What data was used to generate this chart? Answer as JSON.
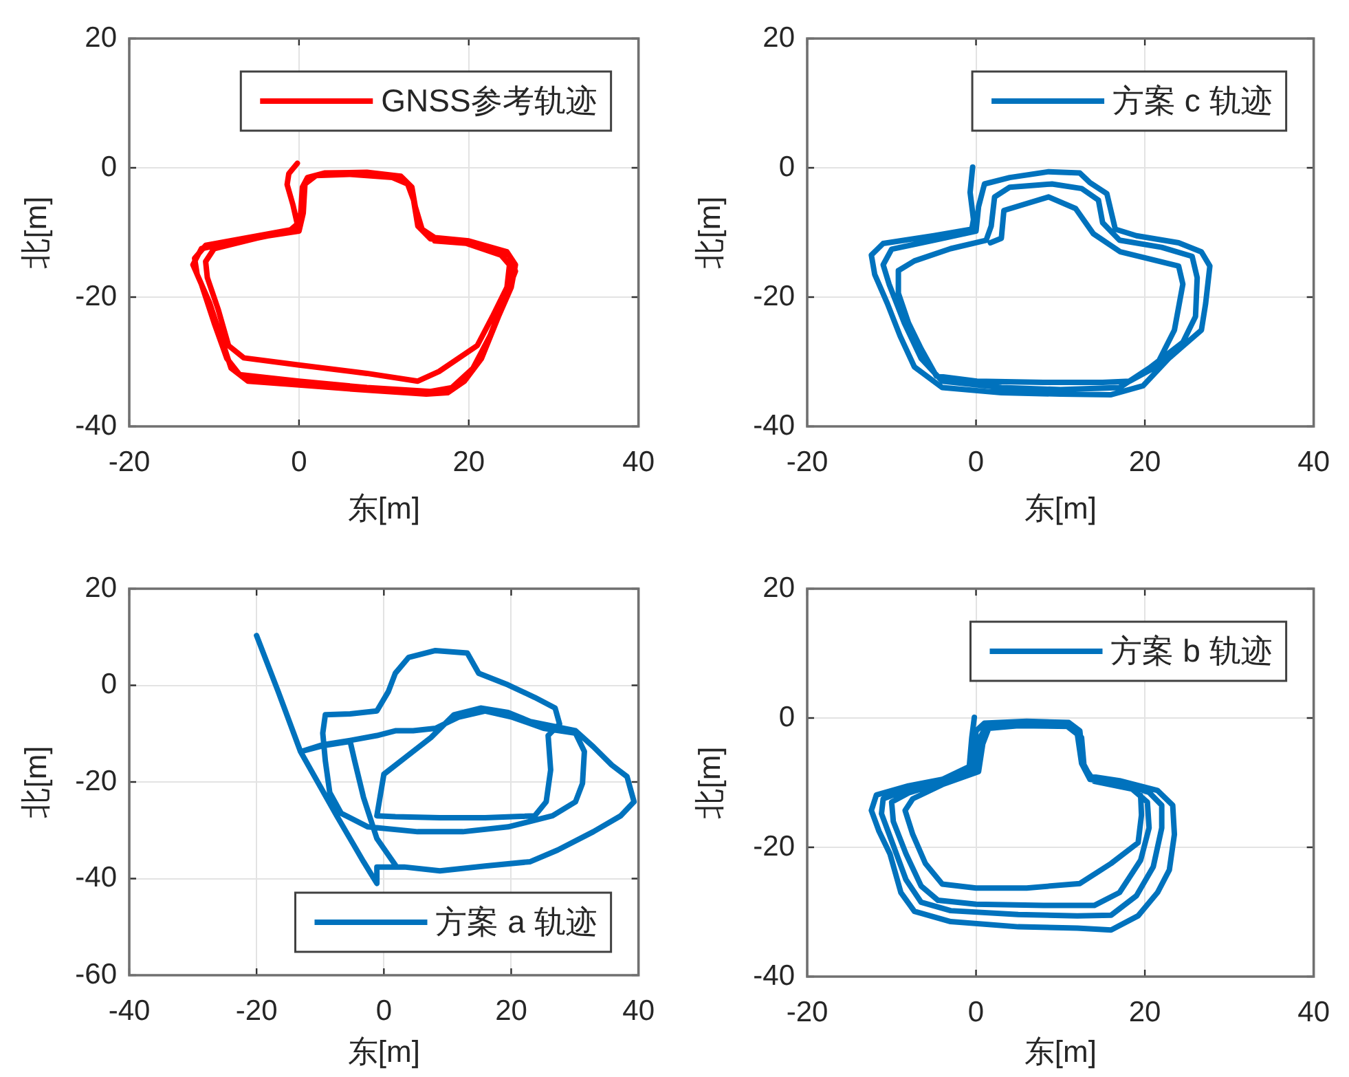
{
  "chart_data": [
    {
      "type": "line",
      "xlabel": "东[m]",
      "ylabel": "北[m]",
      "xlim": [
        -20,
        40
      ],
      "ylim": [
        -40,
        20
      ],
      "xticks": [
        -20,
        0,
        20,
        40
      ],
      "yticks": [
        -40,
        -20,
        0,
        20
      ],
      "grid": true,
      "legend": "top right",
      "x": [
        -0.2,
        -1.2,
        -1.4,
        -0.7,
        -0.2,
        -1,
        -6,
        -11,
        -12.3,
        -12,
        -10.5,
        -9,
        -8,
        -6,
        0,
        8,
        15,
        17.5,
        19.5,
        21.5,
        23.5,
        25,
        25.5,
        24.5,
        20,
        16,
        14.5,
        13.7,
        13.3,
        12,
        8,
        3,
        1,
        0.4,
        0.2,
        -0.3,
        -5,
        -10,
        -11,
        -10.8,
        -9.5,
        -8.3,
        -6.5,
        0,
        8,
        14,
        16.5,
        21,
        22.8,
        24.5,
        24.8,
        23.8,
        19.5,
        15.5,
        14,
        13.5,
        12.8,
        11,
        6,
        2,
        0.7,
        0.5,
        0,
        -6,
        -11.5,
        -12.5,
        -11.5,
        -10,
        -8.5,
        -7,
        0,
        8,
        15.5,
        18,
        20.5,
        22.5,
        24.3,
        25.5,
        24.8,
        21,
        16
      ],
      "series": [
        {
          "name": "GNSS参考轨迹",
          "color": "#ff0000",
          "values": [
            0.7,
            -0.9,
            -2.6,
            -5.8,
            -8.7,
            -9.6,
            -10.8,
            -12,
            -14,
            -16.5,
            -21,
            -27,
            -31,
            -33,
            -33.6,
            -34.4,
            -35,
            -34.8,
            -33,
            -29.5,
            -23,
            -18.5,
            -15,
            -13,
            -11.3,
            -10.8,
            -9.5,
            -6,
            -3,
            -1.3,
            -0.7,
            -0.8,
            -1.5,
            -3,
            -7,
            -9.6,
            -10.9,
            -12.5,
            -14.5,
            -17,
            -22,
            -27.5,
            -29.4,
            -30.5,
            -31.8,
            -33,
            -31.5,
            -27.5,
            -23,
            -18.5,
            -15,
            -13.5,
            -11.6,
            -11,
            -9,
            -5,
            -2.5,
            -1.5,
            -1,
            -1.2,
            -2.5,
            -7,
            -9.8,
            -11,
            -12.5,
            -15,
            -18,
            -24,
            -29.5,
            -32,
            -33,
            -34,
            -34.6,
            -34,
            -31,
            -26,
            -20,
            -16,
            -13.6,
            -11.8,
            -11.3
          ]
        }
      ]
    },
    {
      "type": "line",
      "xlabel": "东[m]",
      "ylabel": "北[m]",
      "xlim": [
        -20,
        40
      ],
      "ylim": [
        -40,
        20
      ],
      "xticks": [
        -20,
        0,
        20,
        40
      ],
      "yticks": [
        -40,
        -20,
        0,
        20
      ],
      "grid": true,
      "legend": "top right",
      "x": [
        -0.4,
        -0.7,
        -0.3,
        -0.5,
        -5,
        -11,
        -12.4,
        -12,
        -10.5,
        -9,
        -7.3,
        -4,
        3,
        10,
        16,
        19.8,
        22.9,
        26.7,
        27.2,
        27.7,
        26.7,
        24,
        19,
        16.5,
        15.5,
        13.5,
        12.3,
        8.6,
        4,
        1,
        0.3,
        0,
        -5,
        -10,
        -11,
        -10.3,
        -8.5,
        -6.5,
        -4,
        3,
        10,
        17,
        20.5,
        24.5,
        26,
        26.2,
        25.6,
        22,
        17,
        15,
        14.5,
        12.5,
        9,
        4,
        2.2,
        1.8,
        1.2,
        -3,
        -7.3,
        -9.2,
        -9.2,
        -8,
        -6.5,
        -4.7,
        0.1,
        8,
        15,
        18.2,
        21.3,
        23.5,
        24.5,
        24,
        17.1,
        13.9,
        11.8,
        8.6,
        3.3,
        3,
        1.7
      ],
      "series": [
        {
          "name": "方案 c 轨迹",
          "color": "#0072bd",
          "values": [
            0.1,
            -3.8,
            -8,
            -9.5,
            -10.5,
            -11.7,
            -13.5,
            -16.5,
            -21,
            -26,
            -30.8,
            -34,
            -34.8,
            -35,
            -35.1,
            -33.7,
            -29.4,
            -25.1,
            -21,
            -15.2,
            -13,
            -11.6,
            -10.5,
            -9.5,
            -4,
            -2.3,
            -0.8,
            -0.6,
            -1.5,
            -2.5,
            -6,
            -9.8,
            -11.2,
            -12.6,
            -15,
            -18,
            -24,
            -29.5,
            -33,
            -34,
            -34.3,
            -34,
            -31,
            -27,
            -23,
            -17,
            -13.7,
            -12.3,
            -11.2,
            -8.5,
            -5,
            -3.2,
            -2.5,
            -3,
            -4.5,
            -9,
            -11.2,
            -12.5,
            -14.4,
            -15.9,
            -19.4,
            -24,
            -28,
            -32.2,
            -33,
            -33.2,
            -33.2,
            -33,
            -30.8,
            -25.1,
            -18,
            -15.2,
            -13,
            -10.2,
            -6.3,
            -4.5,
            -6.6,
            -10.9,
            -11.6
          ]
        }
      ]
    },
    {
      "type": "line",
      "xlabel": "东[m]",
      "ylabel": "北[m]",
      "xlim": [
        -40,
        40
      ],
      "ylim": [
        -60,
        20
      ],
      "xticks": [
        -40,
        -20,
        0,
        20,
        40
      ],
      "yticks": [
        -60,
        -40,
        -20,
        0,
        20
      ],
      "grid": true,
      "legend": "bottom right",
      "x": [
        -20,
        -16.6,
        -13.1,
        -7.4,
        -3.2,
        -1.1,
        -1.1,
        3.2,
        8.8,
        15.9,
        23,
        27.3,
        32.9,
        37.2,
        39.3,
        38.2,
        35.8,
        32.9,
        30.1,
        23,
        19.5,
        15.2,
        11,
        7.4,
        3.2,
        0,
        -1.1,
        1.8,
        8.8,
        15.9,
        23.7,
        25.5,
        26.2,
        25.8,
        27.6,
        26.9,
        23.7,
        19.5,
        14.9,
        13.1,
        8.1,
        3.9,
        1.8,
        0.7,
        -1.1,
        -5.3,
        -9.2,
        -9.6,
        -9.2,
        -8.5,
        -6.7,
        -2.5,
        5.3,
        12.4,
        19.5,
        26.5,
        30.1,
        31.2,
        31.5,
        30.1,
        25.1,
        20.2,
        15.9,
        11.7,
        8.1,
        4.6,
        1.8,
        -1.1,
        -5.3,
        -9.6,
        -13,
        -9.6,
        -5.3,
        -4.6,
        -3.2,
        -1.1,
        1.8
      ],
      "series": [
        {
          "name": "方案 a 轨迹",
          "color": "#0072bd",
          "values": [
            10.3,
            -1.3,
            -13.7,
            -27,
            -36.5,
            -41,
            -37.6,
            -37.6,
            -38.4,
            -37.4,
            -36.5,
            -34.1,
            -30.3,
            -27,
            -24.1,
            -18.9,
            -16.5,
            -12.7,
            -9.4,
            -7.5,
            -5.6,
            -4.7,
            -6.1,
            -10.8,
            -15.1,
            -18.4,
            -27,
            -27.2,
            -27.4,
            -27.4,
            -27,
            -24.1,
            -17.5,
            -10.4,
            -8,
            -4.7,
            -2.5,
            0.1,
            2.5,
            6.7,
            7.2,
            5.8,
            2.5,
            -1.3,
            -5.3,
            -5.9,
            -6.1,
            -9.9,
            -15.6,
            -22.2,
            -26.5,
            -29.3,
            -30.3,
            -30.3,
            -29.3,
            -27,
            -24.1,
            -20.3,
            -13.7,
            -9.9,
            -8.9,
            -6.6,
            -5.3,
            -6.6,
            -8.9,
            -9.4,
            -9.4,
            -10.4,
            -11.4,
            -12.3,
            -13.7,
            -12.5,
            -11.6,
            -15.6,
            -23.2,
            -31.7,
            -37.2
          ]
        }
      ]
    },
    {
      "type": "line",
      "xlabel": "东[m]",
      "ylabel": "北[m]",
      "xlim": [
        -20,
        40
      ],
      "ylim": [
        -40,
        20
      ],
      "xticks": [
        -20,
        0,
        20,
        40
      ],
      "yticks": [
        -40,
        -20,
        0,
        20
      ],
      "grid": true,
      "legend": "top right",
      "x": [
        -0.2,
        -0.5,
        -0.8,
        -4,
        -8,
        -11.8,
        -12.4,
        -11.5,
        -10.2,
        -8.9,
        -7.3,
        -3,
        5,
        12,
        16,
        19.2,
        21.5,
        22.9,
        23.5,
        23.3,
        21.5,
        17,
        13.5,
        12.7,
        12.3,
        11,
        6,
        1,
        0,
        -0.3,
        -4,
        -8,
        -11,
        -11.2,
        -10,
        -8.3,
        -6.5,
        -3,
        5,
        12,
        16,
        19,
        21,
        22,
        22,
        20.5,
        17,
        13.5,
        12.5,
        12,
        10.5,
        5,
        1.2,
        0.5,
        0,
        -4,
        -8,
        -10,
        -9.8,
        -8.3,
        -6.5,
        -4.5,
        0,
        8,
        14,
        17,
        19.5,
        20.5,
        20.3,
        18.5,
        14,
        12.8,
        12.5,
        11,
        5,
        1.5,
        0.8,
        0.3,
        -4,
        -7.5,
        -8.4,
        -7.5,
        -6,
        -4,
        0,
        6,
        12.3,
        16,
        19.2,
        19.6,
        19.5
      ],
      "series": [
        {
          "name": "方案 b 轨迹",
          "color": "#0072bd",
          "values": [
            0.1,
            -3,
            -7.5,
            -9.5,
            -10.5,
            -11.9,
            -14.3,
            -17.5,
            -21,
            -27,
            -29.9,
            -31.5,
            -32.3,
            -32.5,
            -32.8,
            -30.6,
            -27,
            -23.5,
            -18,
            -13.5,
            -11.2,
            -9.7,
            -9,
            -7,
            -2,
            -0.7,
            -0.5,
            -0.8,
            -2,
            -7.8,
            -9.8,
            -11,
            -12.5,
            -14.8,
            -19,
            -25,
            -28.5,
            -29.8,
            -30.4,
            -30.6,
            -30.5,
            -27.5,
            -23,
            -17,
            -13.5,
            -11.5,
            -10,
            -9.5,
            -7,
            -2.5,
            -1,
            -0.8,
            -1.2,
            -3,
            -8,
            -10,
            -11.6,
            -13,
            -16,
            -21,
            -26,
            -28.2,
            -28.8,
            -29,
            -29,
            -27,
            -22,
            -17,
            -13,
            -11,
            -9.8,
            -7.5,
            -3,
            -1.3,
            -1.2,
            -1.6,
            -4,
            -8.3,
            -10.3,
            -12.5,
            -14.3,
            -18,
            -22.5,
            -25.7,
            -26.3,
            -26.3,
            -25.6,
            -22.5,
            -19.3,
            -15,
            -12
          ]
        }
      ]
    }
  ]
}
